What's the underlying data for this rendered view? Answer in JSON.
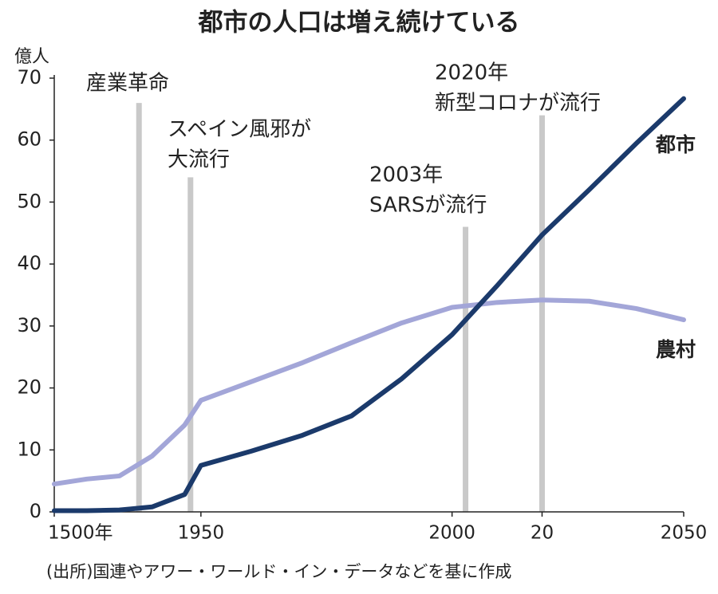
{
  "chart_data": {
    "type": "line",
    "title": "都市の人口は増え続けている",
    "y_unit_label": "億人",
    "source": "(出所)国連やアワー・ワールド・イン・データなどを基に作成",
    "x": [
      1500,
      1600,
      1700,
      1800,
      1900,
      1950,
      1960,
      1970,
      1980,
      1990,
      2000,
      2010,
      2020,
      2030,
      2040,
      2050
    ],
    "series": [
      {
        "name": "都市",
        "color": "#1b3a6b",
        "values": [
          0.2,
          0.2,
          0.3,
          0.8,
          2.8,
          7.5,
          9.8,
          12.3,
          15.5,
          21.5,
          28.6,
          36.5,
          44.7,
          52,
          59.5,
          66.7
        ]
      },
      {
        "name": "農村",
        "color": "#a3a6d8",
        "values": [
          4.5,
          5.3,
          5.8,
          9,
          14,
          18,
          21,
          24,
          27.3,
          30.5,
          33,
          33.8,
          34.2,
          34,
          32.8,
          31
        ]
      }
    ],
    "annotations": [
      {
        "x": 1760,
        "y": 66,
        "label": [
          "産業革命"
        ]
      },
      {
        "x": 1918,
        "y": 54,
        "label": [
          "スペイン風邪が",
          "大流行"
        ]
      },
      {
        "x": 2003,
        "y": 46,
        "label": [
          "2003年",
          "SARSが流行"
        ]
      },
      {
        "x": 2020,
        "y": 64,
        "label": [
          "2020年",
          "新型コロナが流行"
        ]
      }
    ],
    "xlim": [
      1500,
      2050
    ],
    "xticks": [
      {
        "value": 1500,
        "label": "1500年"
      },
      1950,
      2000,
      {
        "value": 2020,
        "label": "20"
      },
      2050
    ],
    "ylim": [
      0,
      70
    ],
    "yticks": [
      0,
      10,
      20,
      30,
      40,
      50,
      60,
      70
    ]
  }
}
